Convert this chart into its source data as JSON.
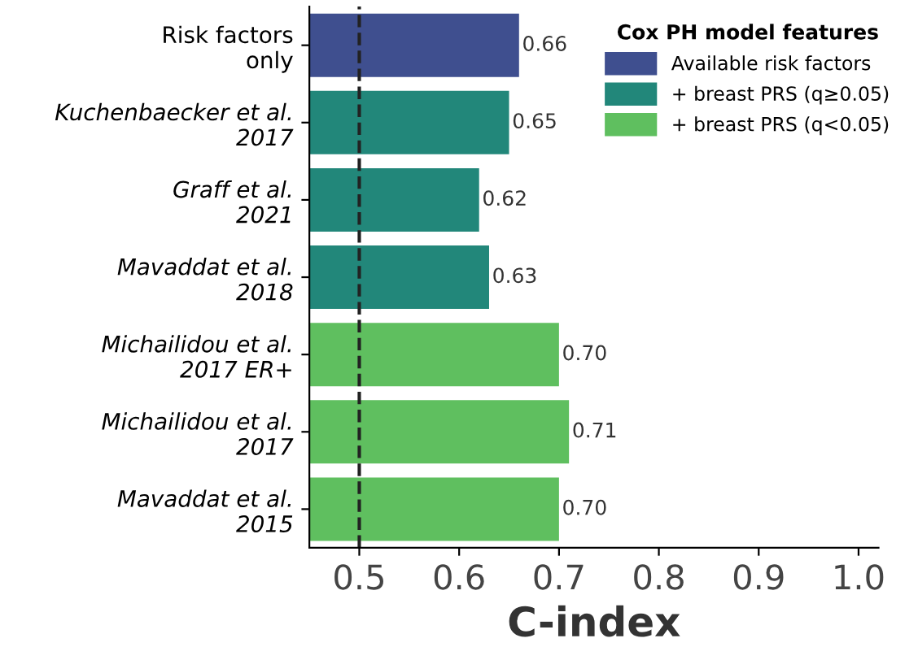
{
  "chart_data": {
    "type": "bar",
    "orientation": "horizontal",
    "categories": [
      "Risk factors\nonly",
      "Kuchenbaecker et al.\n2017",
      "Graff et al.\n2021",
      "Mavaddat et al.\n2018",
      "Michailidou et al.\n2017 ER+",
      "Michailidou et al.\n2017",
      "Mavaddat et al.\n2015"
    ],
    "series": [
      {
        "name": "Available risk factors",
        "color": "#3f4f8f",
        "values": [
          0.66,
          null,
          null,
          null,
          null,
          null,
          null
        ],
        "value_labels": [
          "0.66",
          null,
          null,
          null,
          null,
          null,
          null
        ]
      },
      {
        "name": "+ breast PRS (q≥0.05)",
        "color": "#22877a",
        "values": [
          null,
          0.65,
          0.62,
          0.63,
          null,
          null,
          null
        ],
        "value_labels": [
          null,
          "0.65",
          "0.62",
          "0.63",
          null,
          null,
          null
        ]
      },
      {
        "name": "+ breast PRS (q<0.05)",
        "color": "#5fbf5f",
        "values": [
          null,
          null,
          null,
          null,
          0.7,
          0.71,
          0.7
        ],
        "value_labels": [
          null,
          null,
          null,
          null,
          "0.70",
          "0.71",
          "0.70"
        ]
      }
    ],
    "xlabel": "C-index",
    "legend_title": "Cox PH model features",
    "legend": "top right",
    "xlim": [
      0.45,
      1.02
    ],
    "xticks": [
      0.5,
      0.6,
      0.7,
      0.8,
      0.9,
      {
        "value": 1.0,
        "label": "1.0"
      }
    ],
    "ref_lines": [
      {
        "axis": "x",
        "value": 0.5,
        "color": "#222222",
        "line_style": "dashed"
      }
    ],
    "grid": false
  }
}
